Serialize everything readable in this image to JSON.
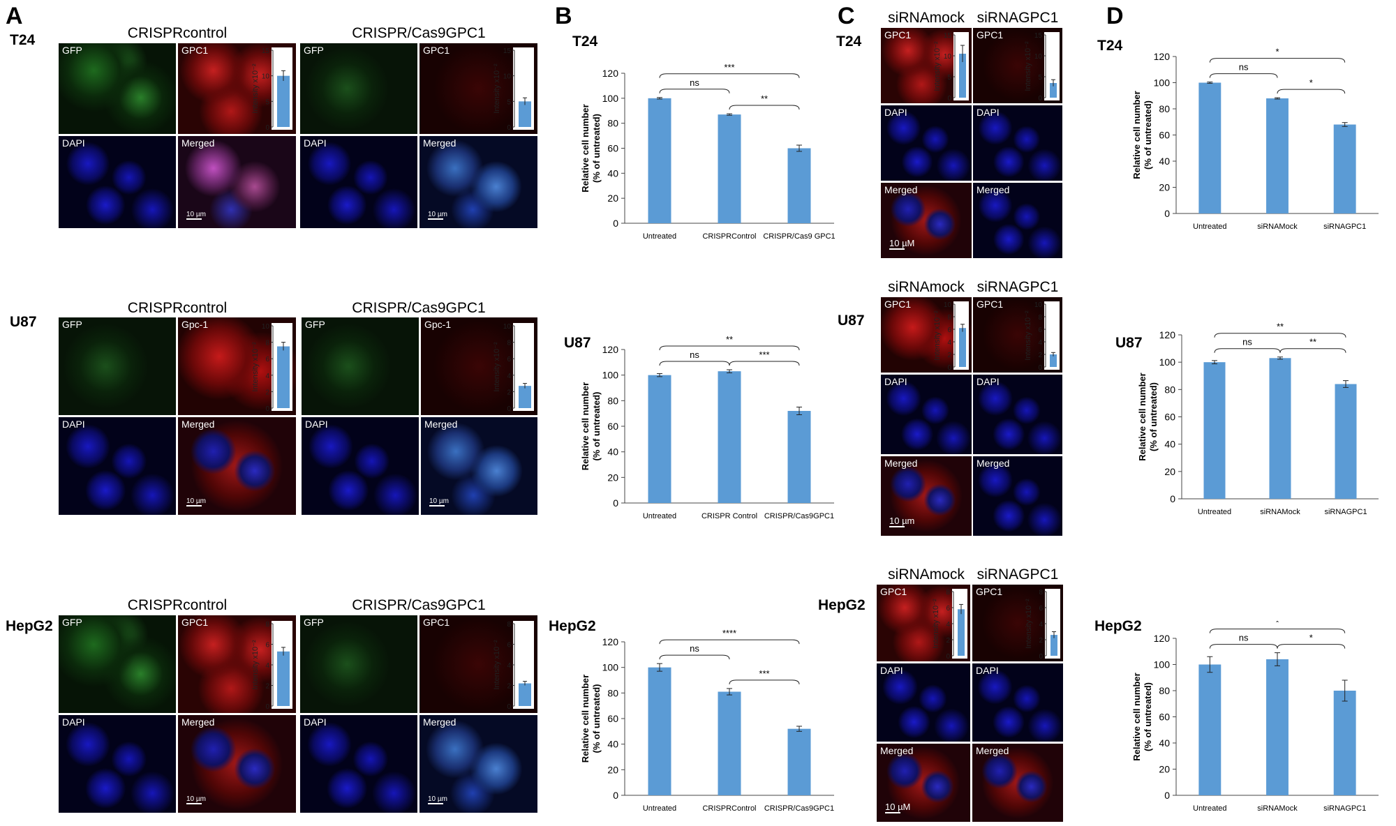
{
  "panel_labels": {
    "A": "A",
    "B": "B",
    "C": "C",
    "D": "D"
  },
  "cell_lines": {
    "t24": "T24",
    "u87": "U87",
    "hepg2": "HepG2"
  },
  "panelA": {
    "rows": [
      {
        "id": "t24",
        "control_title": "CRISPRcontrol",
        "ko_title": "CRISPR/Cas9GPC1",
        "gfp": "GFP",
        "gpc": "GPC1",
        "dapi": "DAPI",
        "merged": "Merged",
        "scale_control": "10 µm",
        "scale_ko": "10 µm"
      },
      {
        "id": "u87",
        "control_title": "CRISPRcontrol",
        "ko_title": "CRISPR/Cas9GPC1",
        "gfp": "GFP",
        "gpc": "Gpc-1",
        "dapi": "DAPI",
        "merged": "Merged",
        "scale_control": "10 µm",
        "scale_ko": "10 µm"
      },
      {
        "id": "hepg2",
        "control_title": "CRISPRcontrol",
        "ko_title": "CRISPR/Cas9GPC1",
        "gfp": "GFP",
        "gpc": "GPC1",
        "dapi": "DAPI",
        "merged": "Merged",
        "scale_control": "10 µm",
        "scale_ko": "10 µm"
      }
    ]
  },
  "panelC": {
    "rows": [
      {
        "id": "t24",
        "mock_title": "siRNAmock",
        "si_title": "siRNAGPC1",
        "gpc": "GPC1",
        "dapi": "DAPI",
        "merged": "Merged",
        "scale": "10 µM"
      },
      {
        "id": "u87",
        "mock_title": "siRNAmock",
        "si_title": "siRNAGPC1",
        "gpc": "GPC1",
        "dapi": "DAPI",
        "merged": "Merged",
        "scale": "10 µm"
      },
      {
        "id": "hepg2",
        "mock_title": "siRNAmock",
        "si_title": "siRNAGPC1",
        "gpc": "GPC1",
        "dapi": "DAPI",
        "merged": "Merged",
        "scale": "10 µM"
      }
    ]
  },
  "chart_data": [
    {
      "id": "B-T24",
      "type": "bar",
      "categories": [
        "Untreated",
        "CRISPRControl",
        "CRISPR/Cas9 GPC1"
      ],
      "values": [
        100,
        87,
        60
      ],
      "errors": [
        0.6,
        0.6,
        2.5
      ],
      "ylabel": "Relative cell number (% of untreated)",
      "ylim": [
        0,
        120
      ],
      "yticks": [
        0,
        20,
        40,
        60,
        80,
        100,
        120
      ],
      "significance": [
        {
          "from": 0,
          "to": 2,
          "label": "***"
        },
        {
          "from": 0,
          "to": 1,
          "label": "ns"
        },
        {
          "from": 1,
          "to": 2,
          "label": "**"
        }
      ]
    },
    {
      "id": "B-U87",
      "type": "bar",
      "categories": [
        "Untreated",
        "CRISPR Control",
        "CRISPR/Cas9GPC1"
      ],
      "values": [
        100,
        103,
        72
      ],
      "errors": [
        1.2,
        1.2,
        3
      ],
      "ylabel": "Relative cell number (% of untreated)",
      "ylim": [
        0,
        120
      ],
      "yticks": [
        0,
        20,
        40,
        60,
        80,
        100,
        120
      ],
      "significance": [
        {
          "from": 0,
          "to": 2,
          "label": "**"
        },
        {
          "from": 0,
          "to": 1,
          "label": "ns"
        },
        {
          "from": 1,
          "to": 2,
          "label": "***"
        }
      ]
    },
    {
      "id": "B-HepG2",
      "type": "bar",
      "categories": [
        "Untreated",
        "CRISPRControl",
        "CRISPR/Cas9GPC1"
      ],
      "values": [
        100,
        81,
        52
      ],
      "errors": [
        3,
        2.5,
        2
      ],
      "ylabel": "Relative cell number (% of untreated)",
      "ylim": [
        0,
        120
      ],
      "yticks": [
        0,
        20,
        40,
        60,
        80,
        100,
        120
      ],
      "significance": [
        {
          "from": 0,
          "to": 2,
          "label": "****"
        },
        {
          "from": 0,
          "to": 1,
          "label": "ns"
        },
        {
          "from": 1,
          "to": 2,
          "label": "***"
        }
      ]
    },
    {
      "id": "D-T24",
      "type": "bar",
      "categories": [
        "Untreated",
        "siRNAMock",
        "siRNAGPC1"
      ],
      "values": [
        100,
        88,
        68
      ],
      "errors": [
        0.5,
        0.5,
        1.5
      ],
      "ylabel": "Relative cell number (% of untreated)",
      "ylim": [
        0,
        120
      ],
      "yticks": [
        0,
        20,
        40,
        60,
        80,
        100,
        120
      ],
      "significance": [
        {
          "from": 0,
          "to": 2,
          "label": "*"
        },
        {
          "from": 0,
          "to": 1,
          "label": "ns"
        },
        {
          "from": 1,
          "to": 2,
          "label": "*"
        }
      ]
    },
    {
      "id": "D-U87",
      "type": "bar",
      "categories": [
        "Untreated",
        "siRNAMock",
        "siRNAGPC1"
      ],
      "values": [
        100,
        103,
        84
      ],
      "errors": [
        1.2,
        0.8,
        2.5
      ],
      "ylabel": "Relative cell number (% of untreated)",
      "ylim": [
        0,
        120
      ],
      "yticks": [
        0,
        20,
        40,
        60,
        80,
        100,
        120
      ],
      "significance": [
        {
          "from": 0,
          "to": 2,
          "label": "**"
        },
        {
          "from": 0,
          "to": 1,
          "label": "ns"
        },
        {
          "from": 1,
          "to": 2,
          "label": "**"
        }
      ]
    },
    {
      "id": "D-HepG2",
      "type": "bar",
      "categories": [
        "Untreated",
        "siRNAMock",
        "siRNAGPC1"
      ],
      "values": [
        100,
        104,
        80
      ],
      "errors": [
        6,
        5,
        8
      ],
      "ylabel": "Relative cell number (% of untreated)",
      "ylim": [
        0,
        120
      ],
      "yticks": [
        0,
        20,
        40,
        60,
        80,
        100,
        120
      ],
      "significance": [
        {
          "from": 0,
          "to": 2,
          "label": "*"
        },
        {
          "from": 0,
          "to": 1,
          "label": "ns"
        },
        {
          "from": 1,
          "to": 2,
          "label": "*"
        }
      ]
    }
  ],
  "insets": [
    {
      "id": "A-t24-c",
      "ymax": 15,
      "ticks": [
        0,
        5,
        10,
        15
      ],
      "value": 10,
      "err": 1,
      "star": "",
      "ylabel": "Intensity x10⁻²"
    },
    {
      "id": "A-t24-k",
      "ymax": 15,
      "ticks": [
        0,
        5,
        10,
        15
      ],
      "value": 5,
      "err": 0.7,
      "star": "**",
      "ylabel": "Intensity x10⁻²"
    },
    {
      "id": "A-u87-c",
      "ymax": 10,
      "ticks": [
        0,
        2,
        4,
        6,
        8,
        10
      ],
      "value": 7.5,
      "err": 0.5,
      "star": "",
      "ylabel": "Intensity x10⁻²"
    },
    {
      "id": "A-u87-k",
      "ymax": 10,
      "ticks": [
        0,
        2,
        4,
        6,
        8,
        10
      ],
      "value": 2.7,
      "err": 0.3,
      "star": "**",
      "ylabel": "Intensity x10⁻²"
    },
    {
      "id": "A-hep-c",
      "ymax": 8,
      "ticks": [
        0,
        2,
        4,
        6,
        8
      ],
      "value": 5.3,
      "err": 0.4,
      "star": "",
      "ylabel": "Intensity x10⁻²"
    },
    {
      "id": "A-hep-k",
      "ymax": 8,
      "ticks": [
        0,
        2,
        4,
        6,
        8
      ],
      "value": 2.2,
      "err": 0.2,
      "star": "***",
      "ylabel": "Intensity x10⁻²"
    },
    {
      "id": "C-t24-m",
      "ymax": 15,
      "ticks": [
        0,
        5,
        10,
        15
      ],
      "value": 10.5,
      "err": 2,
      "star": "",
      "ylabel": "Intensity x10⁻²"
    },
    {
      "id": "C-t24-s",
      "ymax": 15,
      "ticks": [
        0,
        5,
        10,
        15
      ],
      "value": 3.5,
      "err": 0.8,
      "star": "*",
      "ylabel": "Intensity x10⁻²"
    },
    {
      "id": "C-u87-m",
      "ymax": 10,
      "ticks": [
        0,
        2,
        4,
        6,
        8,
        10
      ],
      "value": 6.2,
      "err": 0.6,
      "star": "",
      "ylabel": "Intensity x10⁻²"
    },
    {
      "id": "C-u87-s",
      "ymax": 10,
      "ticks": [
        0,
        2,
        4,
        6,
        8,
        10
      ],
      "value": 2,
      "err": 0.3,
      "star": "**",
      "ylabel": "Intensity x10⁻²"
    },
    {
      "id": "C-hep-m",
      "ymax": 8,
      "ticks": [
        0,
        2,
        4,
        6,
        8
      ],
      "value": 5.8,
      "err": 0.6,
      "star": "",
      "ylabel": "Intensity x10⁻²"
    },
    {
      "id": "C-hep-s",
      "ymax": 8,
      "ticks": [
        0,
        2,
        4,
        6,
        8
      ],
      "value": 2.6,
      "err": 0.4,
      "star": "**",
      "ylabel": "Intensity x10⁻²"
    }
  ],
  "colors": {
    "bar": "#5b9bd5",
    "axis": "#444444"
  }
}
